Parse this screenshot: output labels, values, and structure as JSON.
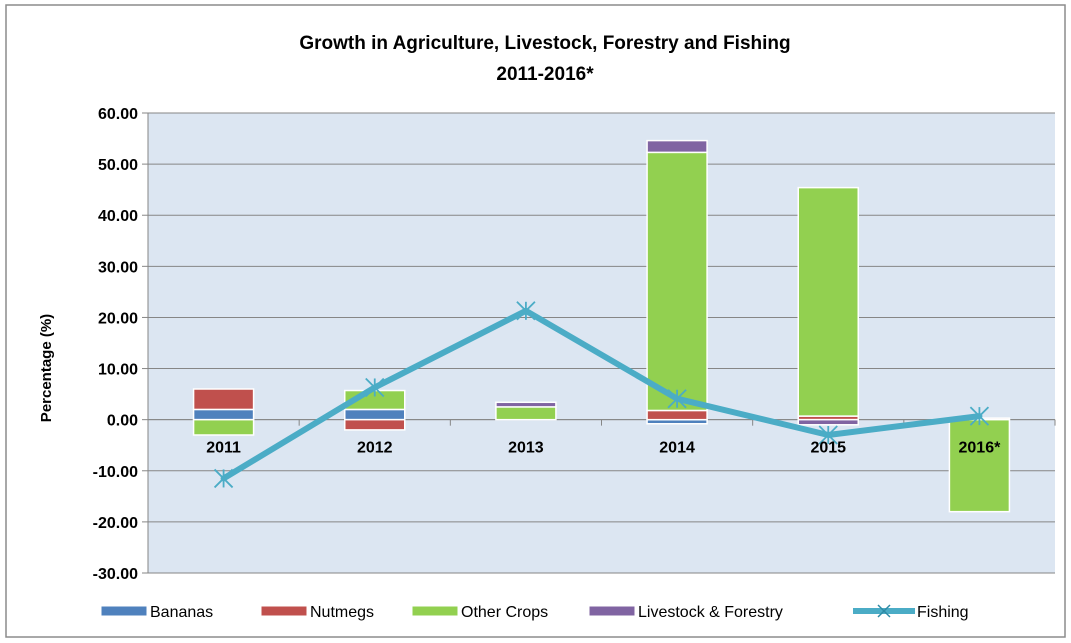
{
  "chart_data": {
    "type": "bar",
    "stacked": true,
    "title": "Growth in Agriculture, Livestock, Forestry and Fishing",
    "subtitle": "2011-2016*",
    "xlabel": "",
    "ylabel": "Percentage (%)",
    "ylim": [
      -30,
      60
    ],
    "yticks": [
      60,
      50,
      40,
      30,
      20,
      10,
      0,
      -10,
      -20,
      -30
    ],
    "ytick_labels": [
      "60.00",
      "50.00",
      "40.00",
      "30.00",
      "20.00",
      "10.00",
      "0.00",
      "-10.00",
      "-20.00",
      "-30.00"
    ],
    "grid": true,
    "legend": "bottom",
    "categories": [
      "2011",
      "2012",
      "2013",
      "2014",
      "2015",
      "2016*"
    ],
    "series": [
      {
        "name": "Bananas",
        "type": "bar",
        "color": "#4F81BD",
        "values": [
          2.0,
          2.0,
          0.0,
          -0.8,
          0.0,
          0.0
        ]
      },
      {
        "name": "Nutmegs",
        "type": "bar",
        "color": "#C0504D",
        "values": [
          4.0,
          -2.0,
          0.0,
          1.8,
          0.7,
          0.3
        ]
      },
      {
        "name": "Other Crops",
        "type": "bar",
        "color": "#92D050",
        "values": [
          -3.0,
          3.7,
          2.5,
          50.5,
          44.7,
          -18.0
        ]
      },
      {
        "name": "Livestock & Forestry",
        "type": "bar",
        "color": "#8064A2",
        "values": [
          0.0,
          0.0,
          0.9,
          2.3,
          -1.0,
          0.0
        ]
      },
      {
        "name": "Fishing",
        "type": "line",
        "color": "#4BACC6",
        "values": [
          -11.5,
          6.3,
          21.3,
          4.1,
          -3.0,
          0.7
        ]
      }
    ]
  }
}
